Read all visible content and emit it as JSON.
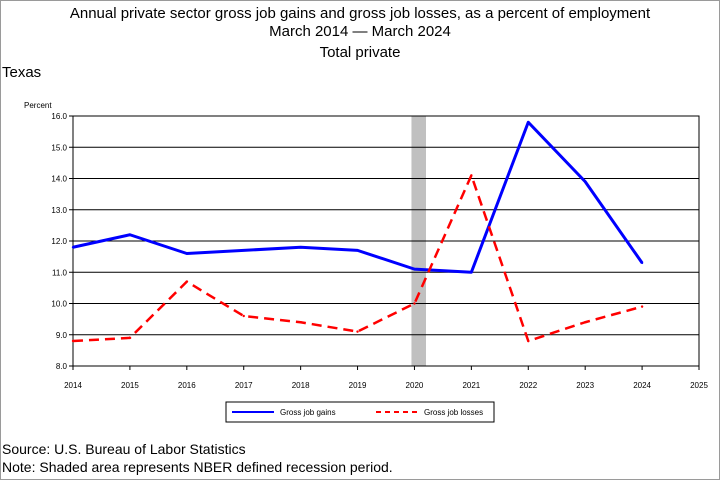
{
  "chart_data": {
    "type": "line",
    "title": "Annual private sector gross job gains and gross job losses, as a percent of employment",
    "subtitle": "March 2014 — March 2024",
    "subtitle2": "Total private",
    "region": "Texas",
    "ylabel": "Percent",
    "xlabel": "",
    "x_ticks": [
      "2014",
      "2015",
      "2016",
      "2017",
      "2018",
      "2019",
      "2020",
      "2021",
      "2022",
      "2023",
      "2024",
      "2025"
    ],
    "y_ticks": [
      "8.0",
      "9.0",
      "10.0",
      "11.0",
      "12.0",
      "13.0",
      "14.0",
      "15.0",
      "16.0"
    ],
    "xlim": [
      2014,
      2025
    ],
    "ylim": [
      8.0,
      16.0
    ],
    "grid": "horizontal",
    "legend_position": "bottom",
    "recession_shade": {
      "start": 2020.0,
      "end": 2020.15,
      "color": "#c0c0c0"
    },
    "series": [
      {
        "name": "Gross job gains",
        "color": "#0000ff",
        "style": "solid",
        "x": [
          2014,
          2015,
          2016,
          2018,
          2019,
          2020,
          2021,
          2022,
          2023,
          2024
        ],
        "values": [
          11.8,
          12.2,
          11.6,
          11.8,
          11.7,
          11.1,
          11.0,
          15.8,
          13.9,
          11.3
        ]
      },
      {
        "name": "Gross job losses",
        "color": "#ff0000",
        "style": "dashed",
        "x": [
          2014,
          2015,
          2016,
          2017,
          2018,
          2019,
          2020,
          2021,
          2022,
          2023,
          2024
        ],
        "values": [
          8.8,
          8.9,
          10.7,
          9.6,
          9.4,
          9.1,
          10.0,
          14.1,
          8.8,
          9.4,
          9.9
        ]
      }
    ]
  },
  "footnotes": {
    "source": "Source: U.S. Bureau of Labor Statistics",
    "note": "Note: Shaded area represents NBER defined recession period."
  }
}
